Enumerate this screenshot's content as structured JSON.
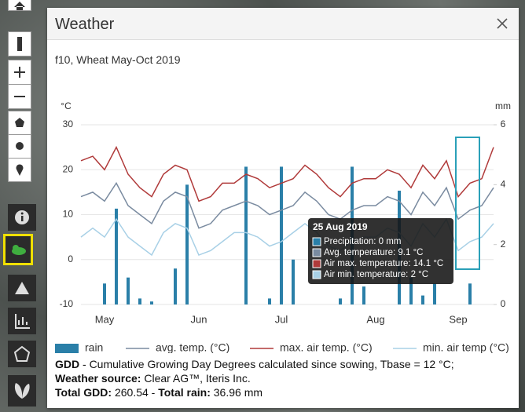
{
  "dialog": {
    "title": "Weather",
    "subtitle": "f10, Wheat May-Oct 2019"
  },
  "chart_data": {
    "type": "line",
    "y_label": "°C",
    "y2_label": "mm",
    "ylim": [
      -10,
      30
    ],
    "yticks": [
      -10,
      0,
      10,
      20,
      30
    ],
    "y2lim": [
      0,
      6
    ],
    "y2ticks": [
      0,
      2,
      4,
      6
    ],
    "grid": true,
    "categories": [
      null,
      null,
      "May",
      null,
      null,
      null,
      null,
      null,
      null,
      null,
      "Jun",
      null,
      null,
      null,
      null,
      null,
      null,
      "Jul",
      null,
      null,
      null,
      null,
      null,
      null,
      null,
      "Aug",
      null,
      null,
      null,
      null,
      null,
      null,
      "Sep",
      null,
      null,
      null
    ],
    "series": [
      {
        "name": "rain",
        "type": "bar",
        "axis": "y2",
        "color": "#2a7fa8",
        "values": [
          0,
          0,
          0.7,
          3.2,
          0.9,
          0.2,
          0.1,
          0,
          1.2,
          4.0,
          0,
          0,
          0,
          0,
          4.6,
          0,
          0.2,
          4.6,
          1.5,
          0,
          0,
          0,
          0.2,
          4.6,
          0.6,
          0,
          0,
          3.8,
          0.9,
          0.3,
          0.7,
          0,
          0,
          0.7,
          0,
          0
        ]
      },
      {
        "name": "avg. temp. (°C)",
        "type": "line",
        "color": "#7a8ba0",
        "values": [
          14,
          15,
          13,
          17,
          12,
          10,
          8,
          13,
          15,
          14,
          7,
          8,
          11,
          12,
          13,
          12,
          10,
          11,
          12,
          15,
          13,
          10,
          9,
          11,
          12,
          12,
          14,
          13,
          10,
          15,
          12,
          16,
          9,
          11,
          12,
          16
        ]
      },
      {
        "name": "max. air temp. (°C)",
        "type": "line",
        "color": "#b03a3a",
        "values": [
          22,
          23,
          20,
          25,
          19,
          16,
          14,
          19,
          21,
          20,
          13,
          14,
          17,
          17,
          19,
          18,
          16,
          17,
          18,
          21,
          19,
          16,
          14,
          17,
          18,
          18,
          20,
          19,
          16,
          21,
          18,
          22,
          14,
          17,
          18,
          25
        ]
      },
      {
        "name": "min. air temp (°C)",
        "type": "line",
        "color": "#a8d0e6",
        "values": [
          5,
          7,
          5,
          9,
          5,
          3,
          1,
          6,
          8,
          7,
          1,
          2,
          4,
          6,
          6,
          5,
          3,
          4,
          6,
          8,
          6,
          3,
          2,
          4,
          5,
          5,
          7,
          6,
          3,
          8,
          5,
          9,
          2,
          4,
          5,
          8
        ]
      }
    ],
    "tooltip": {
      "title": "25 Aug 2019",
      "lines": [
        "Precipitation: 0 mm",
        "Avg. temperature: 9.1 °C",
        "Air max. temperature: 14.1 °C",
        "Air min. temperature: 2 °C"
      ]
    }
  },
  "footer": {
    "gdd_label": "GDD",
    "gdd_text": " - Cumulative Growing Day Degrees calculated since sowing, Tbase = 12 °C;",
    "source_label": "Weather source:",
    "source_text": " Clear AG™, Iteris Inc.",
    "total_gdd_label": "Total GDD:",
    "total_gdd_text": " 260.54 - ",
    "total_rain_label": "Total rain:",
    "total_rain_text": " 36.96 mm"
  }
}
